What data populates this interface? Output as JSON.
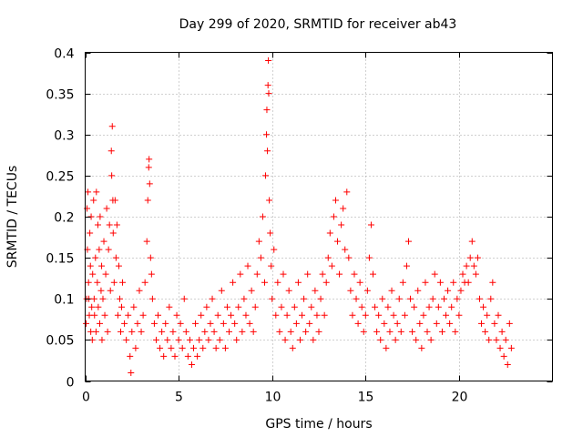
{
  "chart_data": {
    "type": "scatter",
    "title": "Day 299 of 2020, SRMTID for receiver ab43",
    "xlabel": "GPS time / hours",
    "ylabel": "SRMTID / TECUs",
    "xlim": [
      0,
      25
    ],
    "ylim": [
      0,
      0.4
    ],
    "xticks": [
      0,
      5,
      10,
      15,
      20
    ],
    "yticks": [
      0,
      0.05,
      0.1,
      0.15,
      0.2,
      0.25,
      0.3,
      0.35,
      0.4
    ],
    "xtick_labels": [
      "0",
      "5",
      "10",
      "15",
      "20"
    ],
    "ytick_labels": [
      "0",
      "0.05",
      "0.1",
      "0.15",
      "0.2",
      "0.25",
      "0.3",
      "0.35",
      "0.4"
    ],
    "grid": true,
    "marker": "+",
    "marker_color": "#ff0000",
    "series": [
      {
        "name": "SRMTID",
        "points": [
          [
            0.05,
            0.07
          ],
          [
            0.08,
            0.1
          ],
          [
            0.1,
            0.21
          ],
          [
            0.12,
            0.16
          ],
          [
            0.15,
            0.23
          ],
          [
            0.18,
            0.12
          ],
          [
            0.2,
            0.1
          ],
          [
            0.22,
            0.08
          ],
          [
            0.25,
            0.18
          ],
          [
            0.28,
            0.14
          ],
          [
            0.3,
            0.06
          ],
          [
            0.32,
            0.2
          ],
          [
            0.35,
            0.09
          ],
          [
            0.38,
            0.05
          ],
          [
            0.4,
            0.13
          ],
          [
            0.45,
            0.22
          ],
          [
            0.48,
            0.1
          ],
          [
            0.5,
            0.08
          ],
          [
            0.55,
            0.15
          ],
          [
            0.58,
            0.06
          ],
          [
            0.6,
            0.23
          ],
          [
            0.65,
            0.12
          ],
          [
            0.68,
            0.19
          ],
          [
            0.7,
            0.09
          ],
          [
            0.75,
            0.16
          ],
          [
            0.78,
            0.07
          ],
          [
            0.8,
            0.2
          ],
          [
            0.85,
            0.11
          ],
          [
            0.88,
            0.14
          ],
          [
            0.9,
            0.05
          ],
          [
            0.95,
            0.1
          ],
          [
            1.0,
            0.17
          ],
          [
            1.05,
            0.08
          ],
          [
            1.1,
            0.13
          ],
          [
            1.15,
            0.21
          ],
          [
            1.2,
            0.06
          ],
          [
            1.25,
            0.16
          ],
          [
            1.3,
            0.19
          ],
          [
            1.35,
            0.11
          ],
          [
            1.4,
            0.28
          ],
          [
            1.42,
            0.25
          ],
          [
            1.45,
            0.31
          ],
          [
            1.48,
            0.22
          ],
          [
            1.5,
            0.18
          ],
          [
            1.55,
            0.12
          ],
          [
            1.6,
            0.22
          ],
          [
            1.65,
            0.15
          ],
          [
            1.7,
            0.19
          ],
          [
            1.75,
            0.08
          ],
          [
            1.8,
            0.14
          ],
          [
            1.85,
            0.1
          ],
          [
            1.9,
            0.06
          ],
          [
            1.95,
            0.09
          ],
          [
            2.0,
            0.12
          ],
          [
            2.1,
            0.07
          ],
          [
            2.2,
            0.05
          ],
          [
            2.3,
            0.08
          ],
          [
            2.4,
            0.03
          ],
          [
            2.45,
            0.01
          ],
          [
            2.5,
            0.06
          ],
          [
            2.6,
            0.09
          ],
          [
            2.7,
            0.04
          ],
          [
            2.8,
            0.07
          ],
          [
            2.9,
            0.11
          ],
          [
            3.0,
            0.06
          ],
          [
            3.1,
            0.08
          ],
          [
            3.2,
            0.12
          ],
          [
            3.3,
            0.17
          ],
          [
            3.35,
            0.22
          ],
          [
            3.4,
            0.26
          ],
          [
            3.42,
            0.27
          ],
          [
            3.45,
            0.24
          ],
          [
            3.5,
            0.15
          ],
          [
            3.55,
            0.13
          ],
          [
            3.6,
            0.1
          ],
          [
            3.7,
            0.07
          ],
          [
            3.8,
            0.05
          ],
          [
            3.9,
            0.08
          ],
          [
            4.0,
            0.04
          ],
          [
            4.1,
            0.06
          ],
          [
            4.2,
            0.03
          ],
          [
            4.3,
            0.07
          ],
          [
            4.4,
            0.05
          ],
          [
            4.5,
            0.09
          ],
          [
            4.6,
            0.04
          ],
          [
            4.7,
            0.06
          ],
          [
            4.8,
            0.03
          ],
          [
            4.9,
            0.08
          ],
          [
            5.0,
            0.05
          ],
          [
            5.1,
            0.07
          ],
          [
            5.2,
            0.04
          ],
          [
            5.3,
            0.1
          ],
          [
            5.4,
            0.06
          ],
          [
            5.5,
            0.03
          ],
          [
            5.6,
            0.05
          ],
          [
            5.7,
            0.02
          ],
          [
            5.8,
            0.04
          ],
          [
            5.9,
            0.07
          ],
          [
            6.0,
            0.03
          ],
          [
            6.1,
            0.05
          ],
          [
            6.2,
            0.08
          ],
          [
            6.3,
            0.04
          ],
          [
            6.4,
            0.06
          ],
          [
            6.5,
            0.09
          ],
          [
            6.6,
            0.05
          ],
          [
            6.7,
            0.07
          ],
          [
            6.8,
            0.1
          ],
          [
            6.9,
            0.06
          ],
          [
            7.0,
            0.04
          ],
          [
            7.1,
            0.08
          ],
          [
            7.2,
            0.05
          ],
          [
            7.3,
            0.11
          ],
          [
            7.4,
            0.07
          ],
          [
            7.5,
            0.04
          ],
          [
            7.6,
            0.09
          ],
          [
            7.7,
            0.06
          ],
          [
            7.8,
            0.08
          ],
          [
            7.9,
            0.12
          ],
          [
            8.0,
            0.07
          ],
          [
            8.1,
            0.05
          ],
          [
            8.2,
            0.09
          ],
          [
            8.3,
            0.13
          ],
          [
            8.4,
            0.06
          ],
          [
            8.5,
            0.1
          ],
          [
            8.6,
            0.08
          ],
          [
            8.7,
            0.14
          ],
          [
            8.8,
            0.07
          ],
          [
            8.9,
            0.11
          ],
          [
            9.0,
            0.06
          ],
          [
            9.1,
            0.09
          ],
          [
            9.2,
            0.13
          ],
          [
            9.3,
            0.17
          ],
          [
            9.4,
            0.15
          ],
          [
            9.5,
            0.2
          ],
          [
            9.6,
            0.12
          ],
          [
            9.65,
            0.25
          ],
          [
            9.7,
            0.3
          ],
          [
            9.72,
            0.33
          ],
          [
            9.75,
            0.28
          ],
          [
            9.78,
            0.36
          ],
          [
            9.8,
            0.39
          ],
          [
            9.82,
            0.35
          ],
          [
            9.85,
            0.22
          ],
          [
            9.9,
            0.18
          ],
          [
            9.95,
            0.14
          ],
          [
            10.0,
            0.1
          ],
          [
            10.1,
            0.16
          ],
          [
            10.2,
            0.08
          ],
          [
            10.3,
            0.12
          ],
          [
            10.4,
            0.06
          ],
          [
            10.5,
            0.09
          ],
          [
            10.6,
            0.13
          ],
          [
            10.7,
            0.05
          ],
          [
            10.8,
            0.08
          ],
          [
            10.9,
            0.11
          ],
          [
            11.0,
            0.06
          ],
          [
            11.1,
            0.04
          ],
          [
            11.2,
            0.09
          ],
          [
            11.3,
            0.07
          ],
          [
            11.4,
            0.12
          ],
          [
            11.5,
            0.05
          ],
          [
            11.6,
            0.08
          ],
          [
            11.7,
            0.1
          ],
          [
            11.8,
            0.06
          ],
          [
            11.9,
            0.13
          ],
          [
            12.0,
            0.07
          ],
          [
            12.1,
            0.09
          ],
          [
            12.2,
            0.05
          ],
          [
            12.3,
            0.11
          ],
          [
            12.4,
            0.08
          ],
          [
            12.5,
            0.06
          ],
          [
            12.6,
            0.1
          ],
          [
            12.7,
            0.13
          ],
          [
            12.8,
            0.08
          ],
          [
            12.9,
            0.12
          ],
          [
            13.0,
            0.15
          ],
          [
            13.1,
            0.18
          ],
          [
            13.2,
            0.14
          ],
          [
            13.3,
            0.2
          ],
          [
            13.4,
            0.22
          ],
          [
            13.5,
            0.17
          ],
          [
            13.6,
            0.13
          ],
          [
            13.7,
            0.19
          ],
          [
            13.8,
            0.21
          ],
          [
            13.9,
            0.16
          ],
          [
            14.0,
            0.23
          ],
          [
            14.1,
            0.15
          ],
          [
            14.2,
            0.11
          ],
          [
            14.3,
            0.08
          ],
          [
            14.4,
            0.13
          ],
          [
            14.5,
            0.1
          ],
          [
            14.6,
            0.07
          ],
          [
            14.7,
            0.12
          ],
          [
            14.8,
            0.09
          ],
          [
            14.9,
            0.06
          ],
          [
            15.0,
            0.08
          ],
          [
            15.1,
            0.11
          ],
          [
            15.2,
            0.15
          ],
          [
            15.3,
            0.19
          ],
          [
            15.4,
            0.13
          ],
          [
            15.5,
            0.09
          ],
          [
            15.6,
            0.06
          ],
          [
            15.7,
            0.08
          ],
          [
            15.8,
            0.05
          ],
          [
            15.9,
            0.1
          ],
          [
            16.0,
            0.07
          ],
          [
            16.1,
            0.04
          ],
          [
            16.2,
            0.09
          ],
          [
            16.3,
            0.06
          ],
          [
            16.4,
            0.11
          ],
          [
            16.5,
            0.08
          ],
          [
            16.6,
            0.05
          ],
          [
            16.7,
            0.07
          ],
          [
            16.8,
            0.1
          ],
          [
            16.9,
            0.06
          ],
          [
            17.0,
            0.12
          ],
          [
            17.1,
            0.08
          ],
          [
            17.2,
            0.14
          ],
          [
            17.3,
            0.17
          ],
          [
            17.4,
            0.1
          ],
          [
            17.5,
            0.06
          ],
          [
            17.6,
            0.09
          ],
          [
            17.7,
            0.05
          ],
          [
            17.8,
            0.11
          ],
          [
            17.9,
            0.07
          ],
          [
            18.0,
            0.04
          ],
          [
            18.1,
            0.08
          ],
          [
            18.2,
            0.12
          ],
          [
            18.3,
            0.06
          ],
          [
            18.4,
            0.09
          ],
          [
            18.5,
            0.05
          ],
          [
            18.6,
            0.1
          ],
          [
            18.7,
            0.13
          ],
          [
            18.8,
            0.07
          ],
          [
            18.9,
            0.09
          ],
          [
            19.0,
            0.12
          ],
          [
            19.1,
            0.06
          ],
          [
            19.2,
            0.1
          ],
          [
            19.3,
            0.08
          ],
          [
            19.4,
            0.11
          ],
          [
            19.5,
            0.07
          ],
          [
            19.6,
            0.09
          ],
          [
            19.7,
            0.12
          ],
          [
            19.8,
            0.06
          ],
          [
            19.9,
            0.1
          ],
          [
            20.0,
            0.08
          ],
          [
            20.1,
            0.11
          ],
          [
            20.2,
            0.13
          ],
          [
            20.3,
            0.12
          ],
          [
            20.4,
            0.14
          ],
          [
            20.5,
            0.12
          ],
          [
            20.6,
            0.15
          ],
          [
            20.7,
            0.17
          ],
          [
            20.8,
            0.14
          ],
          [
            20.9,
            0.13
          ],
          [
            21.0,
            0.15
          ],
          [
            21.1,
            0.1
          ],
          [
            21.2,
            0.07
          ],
          [
            21.3,
            0.09
          ],
          [
            21.4,
            0.06
          ],
          [
            21.5,
            0.08
          ],
          [
            21.6,
            0.05
          ],
          [
            21.7,
            0.1
          ],
          [
            21.8,
            0.12
          ],
          [
            21.9,
            0.07
          ],
          [
            22.0,
            0.05
          ],
          [
            22.1,
            0.08
          ],
          [
            22.2,
            0.04
          ],
          [
            22.3,
            0.06
          ],
          [
            22.4,
            0.03
          ],
          [
            22.5,
            0.05
          ],
          [
            22.6,
            0.02
          ],
          [
            22.7,
            0.07
          ],
          [
            22.8,
            0.04
          ]
        ]
      }
    ]
  }
}
